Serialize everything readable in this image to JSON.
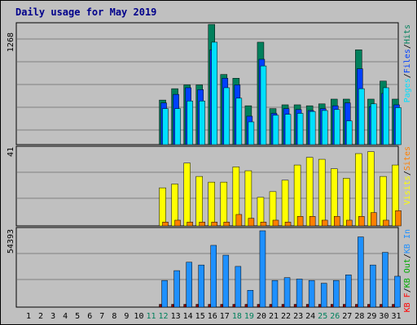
{
  "title": "Daily usage for May 2019",
  "colors": {
    "background": "#c0c0c0",
    "title": "#00008b",
    "hits": "#00805c",
    "files": "#0040ff",
    "pages": "#00e0ff",
    "visits": "#ffff00",
    "sites": "#ff8000",
    "kbin": "#1e90ff",
    "kbout": "#00aa00",
    "kbf": "#ff0000",
    "day_weekday": "#000000",
    "day_weekend": "#00805c"
  },
  "chart_data": [
    {
      "type": "bar",
      "panel": "hits-files-pages",
      "ymax_label": "1268",
      "ylim": [
        0,
        1268
      ],
      "legend": [
        "Pages",
        "/",
        "Files",
        "/",
        "Hits"
      ],
      "x": [
        1,
        2,
        3,
        4,
        5,
        6,
        7,
        8,
        9,
        10,
        11,
        12,
        13,
        14,
        15,
        16,
        17,
        18,
        19,
        20,
        21,
        22,
        23,
        24,
        25,
        26,
        27,
        28,
        29,
        30,
        31
      ],
      "series": [
        {
          "name": "Hits",
          "values": [
            0,
            0,
            0,
            0,
            0,
            0,
            0,
            0,
            0,
            0,
            0,
            470,
            590,
            630,
            630,
            1268,
            740,
            700,
            410,
            1080,
            380,
            420,
            420,
            410,
            430,
            480,
            480,
            1000,
            480,
            670,
            480
          ]
        },
        {
          "name": "Files",
          "values": [
            0,
            0,
            0,
            0,
            0,
            0,
            0,
            0,
            0,
            0,
            0,
            440,
            530,
            600,
            580,
            1000,
            700,
            630,
            300,
            900,
            330,
            380,
            370,
            360,
            380,
            410,
            440,
            800,
            400,
            540,
            420
          ]
        },
        {
          "name": "Pages",
          "values": [
            0,
            0,
            0,
            0,
            0,
            0,
            0,
            0,
            0,
            0,
            0,
            380,
            380,
            460,
            460,
            1080,
            600,
            490,
            240,
            830,
            310,
            320,
            330,
            350,
            360,
            370,
            250,
            590,
            430,
            600,
            390
          ]
        }
      ]
    },
    {
      "type": "bar",
      "panel": "visits-sites",
      "ymax_label": "41",
      "ylim": [
        0,
        41
      ],
      "legend": [
        "Visits",
        "/",
        "Sites"
      ],
      "x": [
        1,
        2,
        3,
        4,
        5,
        6,
        7,
        8,
        9,
        10,
        11,
        12,
        13,
        14,
        15,
        16,
        17,
        18,
        19,
        20,
        21,
        22,
        23,
        24,
        25,
        26,
        27,
        28,
        29,
        30,
        31
      ],
      "series": [
        {
          "name": "Visits",
          "values": [
            0,
            0,
            0,
            0,
            0,
            0,
            0,
            0,
            0,
            0,
            0,
            20,
            22,
            33,
            26,
            23,
            23,
            31,
            29,
            15,
            18,
            24,
            32,
            36,
            35,
            30,
            25,
            38,
            39,
            26,
            32
          ]
        },
        {
          "name": "Sites",
          "values": [
            0,
            0,
            0,
            0,
            0,
            0,
            0,
            0,
            0,
            0,
            0,
            2,
            3,
            2,
            2,
            2,
            2,
            6,
            4,
            2,
            3,
            2,
            5,
            5,
            3,
            5,
            3,
            5,
            7,
            3,
            8
          ]
        }
      ]
    },
    {
      "type": "bar",
      "panel": "kbytes",
      "ymax_label": "54393",
      "ylim": [
        0,
        54393
      ],
      "legend": [
        "KB F",
        "/",
        "KB Out",
        "/",
        "KB In"
      ],
      "x": [
        1,
        2,
        3,
        4,
        5,
        6,
        7,
        8,
        9,
        10,
        11,
        12,
        13,
        14,
        15,
        16,
        17,
        18,
        19,
        20,
        21,
        22,
        23,
        24,
        25,
        26,
        27,
        28,
        29,
        30,
        31
      ],
      "series": [
        {
          "name": "KB In",
          "values": [
            0,
            0,
            0,
            0,
            0,
            0,
            0,
            0,
            0,
            0,
            0,
            19000,
            26000,
            32000,
            30000,
            44000,
            37000,
            29000,
            12000,
            54393,
            19000,
            21000,
            20000,
            19000,
            17000,
            19000,
            23000,
            50000,
            30000,
            39000,
            22000
          ]
        },
        {
          "name": "KB F",
          "values": [
            0,
            0,
            0,
            0,
            0,
            0,
            0,
            0,
            0,
            0,
            0,
            2000,
            2000,
            2000,
            2000,
            2000,
            2000,
            2000,
            2000,
            2000,
            2000,
            2000,
            2000,
            2000,
            2000,
            2000,
            2000,
            2000,
            2000,
            2000,
            2000
          ]
        }
      ]
    }
  ],
  "weekend_days": [
    11,
    12,
    18,
    19,
    25,
    26
  ]
}
